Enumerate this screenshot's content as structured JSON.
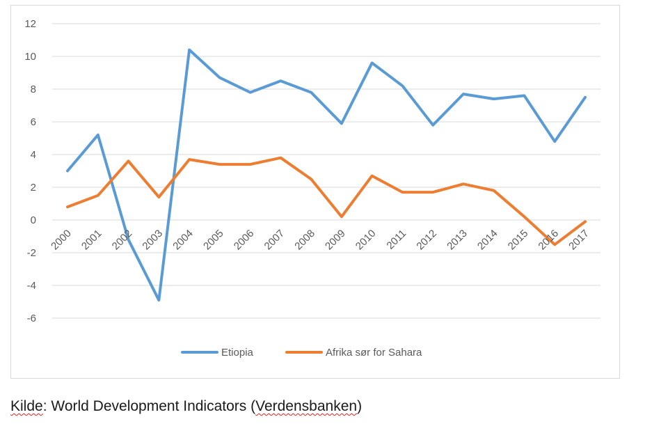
{
  "chart_data": {
    "type": "line",
    "categories": [
      "2000",
      "2001",
      "2002",
      "2003",
      "2004",
      "2005",
      "2006",
      "2007",
      "2008",
      "2009",
      "2010",
      "2011",
      "2012",
      "2013",
      "2014",
      "2015",
      "2016",
      "2017"
    ],
    "series": [
      {
        "name": "Etiopia",
        "color": "#5b9bd5",
        "values": [
          3.0,
          5.2,
          -1.2,
          -4.9,
          10.4,
          8.7,
          7.8,
          8.5,
          7.8,
          5.9,
          9.6,
          8.2,
          5.8,
          7.7,
          7.4,
          7.6,
          4.8,
          7.5
        ]
      },
      {
        "name": "Afrika sør for Sahara",
        "color": "#ed7d31",
        "values": [
          0.8,
          1.5,
          3.6,
          1.4,
          3.7,
          3.4,
          3.4,
          3.8,
          2.5,
          0.2,
          2.7,
          1.7,
          1.7,
          2.2,
          1.8,
          0.2,
          -1.5,
          -0.1
        ]
      }
    ],
    "y_ticks": [
      "12",
      "10",
      "8",
      "6",
      "4",
      "2",
      "0",
      "-2",
      "-4",
      "-6"
    ],
    "ylim": [
      -6,
      12
    ],
    "grid": true,
    "legend_position": "bottom"
  },
  "source": {
    "prefix": "Kilde",
    "middle": ": World Development Indicators (",
    "underlined": "Verdensbanken",
    "suffix": ")"
  }
}
